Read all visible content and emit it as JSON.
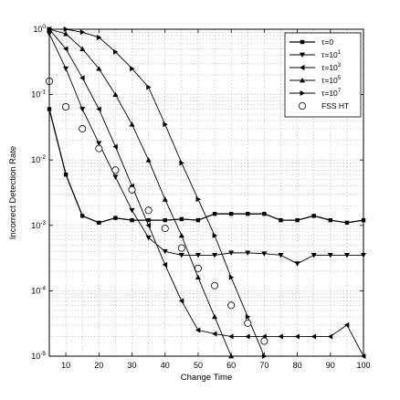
{
  "chart_data": {
    "type": "line",
    "title": "",
    "xlabel": "Change Time",
    "ylabel": "Incorrect Detection Rate",
    "xlim": [
      5,
      100
    ],
    "ylim": [
      1e-05,
      1
    ],
    "yscale": "log",
    "grid": true,
    "legend_position": "top-right",
    "x_ticks": [
      "10",
      "20",
      "30",
      "40",
      "50",
      "60",
      "70",
      "80",
      "90",
      "100"
    ],
    "y_ticks": [
      {
        "base": "10",
        "exp": "0"
      },
      {
        "base": "10",
        "exp": "-1"
      },
      {
        "base": "10",
        "exp": "-2"
      },
      {
        "base": "10",
        "exp": "-3"
      },
      {
        "base": "10",
        "exp": "-4"
      },
      {
        "base": "10",
        "exp": "-5"
      }
    ],
    "series": [
      {
        "name": "τ=0",
        "label_text": "τ=0",
        "label_sup": "",
        "marker": "square",
        "line": true,
        "x": [
          5,
          10,
          15,
          20,
          25,
          30,
          35,
          40,
          45,
          50,
          55,
          60,
          65,
          70,
          75,
          80,
          85,
          90,
          95,
          100
        ],
        "y": [
          0.06,
          0.006,
          0.0014,
          0.0011,
          0.0013,
          0.0012,
          0.0012,
          0.0012,
          0.00125,
          0.0012,
          0.0015,
          0.0015,
          0.0015,
          0.0015,
          0.0012,
          0.0012,
          0.0014,
          0.0012,
          0.0011,
          0.0012
        ]
      },
      {
        "name": "τ=10^1",
        "label_text": "τ=10",
        "label_sup": "1",
        "marker": "triangle-down",
        "line": true,
        "x": [
          5,
          10,
          15,
          20,
          25,
          30,
          35,
          40,
          45,
          50,
          55,
          60,
          65,
          70,
          75,
          80,
          85,
          90,
          95,
          100
        ],
        "y": [
          0.85,
          0.25,
          0.06,
          0.018,
          0.0055,
          0.0017,
          0.00065,
          0.0004,
          0.00035,
          0.00035,
          0.00035,
          0.00038,
          0.00038,
          0.00037,
          0.00035,
          0.00026,
          0.00035,
          0.00035,
          0.00035,
          0.00035
        ]
      },
      {
        "name": "τ=10^3",
        "label_text": "τ=10",
        "label_sup": "3",
        "marker": "triangle-left",
        "line": true,
        "x": [
          5,
          10,
          15,
          20,
          25,
          30,
          35,
          40,
          45,
          50,
          55,
          60,
          65,
          70,
          75,
          80,
          85,
          90,
          95,
          100
        ],
        "y": [
          1.0,
          0.5,
          0.18,
          0.06,
          0.016,
          0.004,
          0.001,
          0.00025,
          7e-05,
          2.5e-05,
          2.2e-05,
          2e-05,
          2e-05,
          2e-05,
          2e-05,
          2e-05,
          2e-05,
          2e-05,
          3e-05,
          1e-05
        ]
      },
      {
        "name": "τ=10^5",
        "label_text": "τ=10",
        "label_sup": "5",
        "marker": "triangle-up",
        "line": true,
        "x": [
          5,
          10,
          15,
          20,
          25,
          30,
          35,
          40,
          45,
          50,
          55,
          60
        ],
        "y": [
          1.0,
          0.85,
          0.5,
          0.25,
          0.1,
          0.035,
          0.01,
          0.0025,
          0.0007,
          0.00016,
          4e-05,
          1e-05
        ]
      },
      {
        "name": "τ=10^7",
        "label_text": "τ=10",
        "label_sup": "7",
        "marker": "triangle-right",
        "line": true,
        "x": [
          5,
          10,
          15,
          20,
          25,
          30,
          35,
          40,
          45,
          50,
          55,
          60,
          65,
          70
        ],
        "y": [
          1.0,
          1.0,
          0.9,
          0.75,
          0.45,
          0.25,
          0.13,
          0.035,
          0.009,
          0.0025,
          0.0007,
          0.00016,
          4e-05,
          1e-05
        ]
      },
      {
        "name": "FSS HT",
        "label_text": "FSS HT",
        "label_sup": "",
        "marker": "circle",
        "line": false,
        "x": [
          5,
          10,
          15,
          20,
          25,
          30,
          35,
          40,
          45,
          50,
          55,
          60,
          65,
          70
        ],
        "y": [
          0.16,
          0.065,
          0.03,
          0.015,
          0.007,
          0.0035,
          0.0017,
          0.0009,
          0.00045,
          0.00022,
          0.00012,
          6e-05,
          3.2e-05,
          1.7e-05
        ]
      }
    ]
  }
}
